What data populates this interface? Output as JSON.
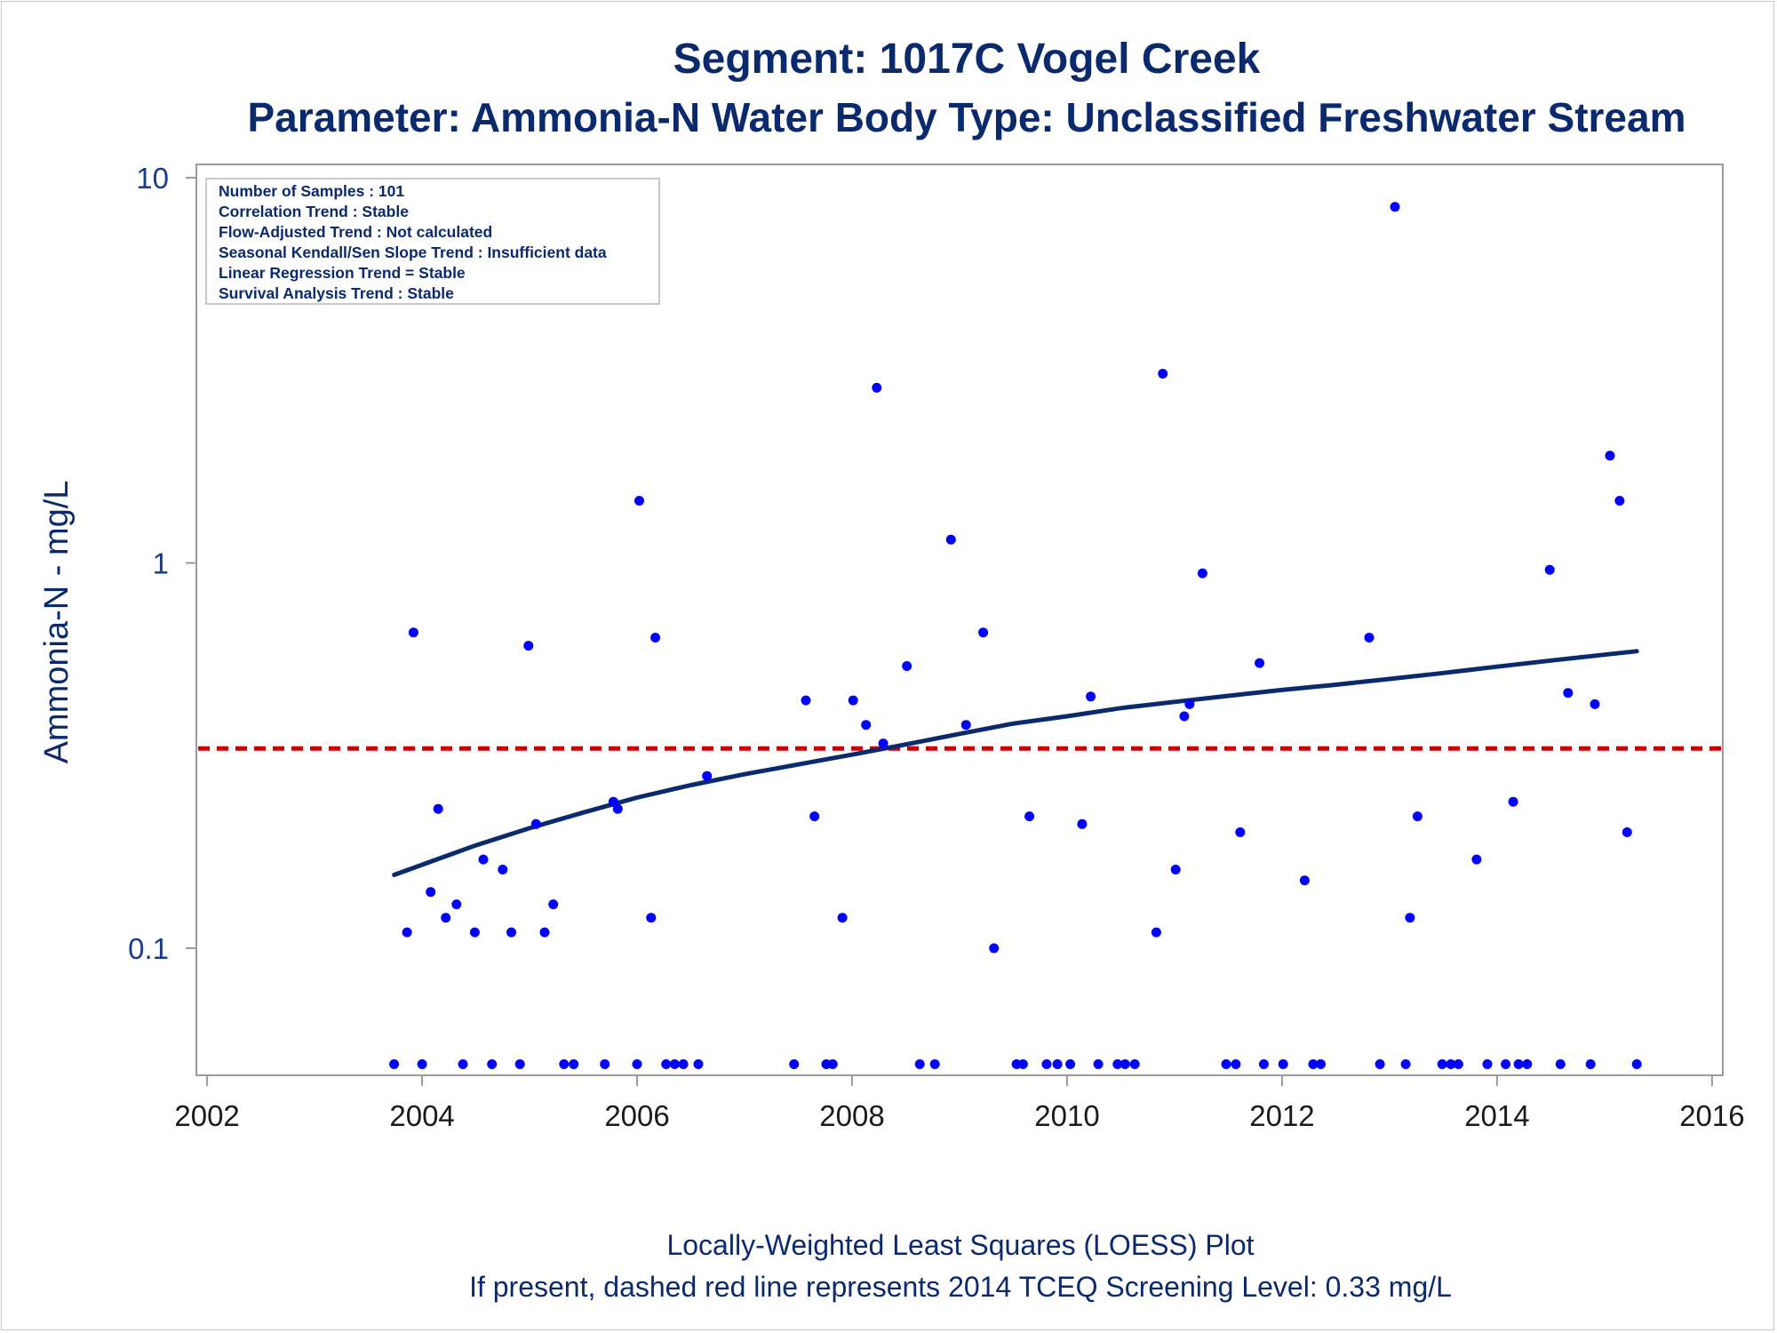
{
  "chart_data": {
    "type": "scatter",
    "title": "Segment: 1017C  Vogel Creek",
    "subtitle": "Parameter: Ammonia-N   Water Body Type: Unclassified Freshwater Stream",
    "xlabel": "",
    "ylabel": "Ammonia-N - mg/L",
    "yscale": "log",
    "xlim": [
      2001.9,
      2016.1
    ],
    "ylim": [
      0.04,
      10
    ],
    "xticks": [
      "2002",
      "2004",
      "2006",
      "2008",
      "2010",
      "2012",
      "2014",
      "2016"
    ],
    "yticks": [
      {
        "label": "10",
        "value": 10
      },
      {
        "label": "1",
        "value": 1
      },
      {
        "label": "0.1",
        "value": 0.1
      }
    ],
    "grid": false,
    "legend": "none",
    "stats_box": [
      "Number of Samples : 101",
      "Correlation Trend : Stable",
      "Flow-Adjusted Trend : Not calculated",
      "Seasonal Kendall/Sen Slope Trend : Insufficient data",
      "Linear Regression Trend = Stable",
      "Survival Analysis Trend : Stable"
    ],
    "screening_level": 0.33,
    "footnotes": [
      "Locally-Weighted Least Squares (LOESS) Plot",
      "If present, dashed red line represents 2014 TCEQ Screening Level: 0.33 mg/L"
    ],
    "colors": {
      "points": "#0000ff",
      "loess": "#0b2a6e",
      "screening": "#cc0000",
      "text": "#0b2a6e"
    },
    "series": [
      {
        "type": "scatter",
        "x": [
          2003.86,
          2003.92,
          2004.08,
          2004.15,
          2004.22,
          2004.32,
          2004.49,
          2004.57,
          2004.75,
          2004.83,
          2004.99,
          2005.06,
          2005.14,
          2005.22,
          2005.78,
          2005.82,
          2006.02,
          2006.13,
          2006.17,
          2006.65,
          2007.57,
          2007.65,
          2007.91,
          2008.01,
          2008.13,
          2008.23,
          2008.29,
          2008.51,
          2008.92,
          2009.06,
          2009.22,
          2009.32,
          2009.65,
          2010.14,
          2010.22,
          2010.83,
          2010.89,
          2011.01,
          2011.09,
          2011.14,
          2011.26,
          2011.61,
          2011.79,
          2012.21,
          2012.81,
          2013.05,
          2013.19,
          2013.26,
          2013.81,
          2014.15,
          2014.49,
          2014.66,
          2014.91,
          2015.05,
          2015.14,
          2015.21
        ],
        "y": [
          0.11,
          0.66,
          0.14,
          0.23,
          0.12,
          0.13,
          0.11,
          0.17,
          0.16,
          0.11,
          0.61,
          0.21,
          0.11,
          0.13,
          0.24,
          0.23,
          1.45,
          0.12,
          0.64,
          0.28,
          0.44,
          0.22,
          0.12,
          0.44,
          0.38,
          2.85,
          0.34,
          0.54,
          1.15,
          0.38,
          0.66,
          0.1,
          0.22,
          0.21,
          0.45,
          0.11,
          3.1,
          0.16,
          0.4,
          0.43,
          0.94,
          0.2,
          0.55,
          0.15,
          0.64,
          8.4,
          0.12,
          0.22,
          0.17,
          0.24,
          0.96,
          0.46,
          0.43,
          1.9,
          1.45,
          0.2
        ]
      },
      {
        "type": "scatter",
        "x": [
          2003.74,
          2004.0,
          2004.38,
          2004.65,
          2004.91,
          2005.32,
          2005.41,
          2005.7,
          2006.0,
          2006.27,
          2006.35,
          2006.43,
          2006.57,
          2007.46,
          2007.76,
          2007.82,
          2008.63,
          2008.77,
          2009.53,
          2009.59,
          2009.81,
          2009.91,
          2010.03,
          2010.29,
          2010.47,
          2010.54,
          2010.63,
          2011.48,
          2011.57,
          2011.83,
          2012.01,
          2012.29,
          2012.36,
          2012.91,
          2013.15,
          2013.49,
          2013.57,
          2013.64,
          2013.91,
          2014.08,
          2014.2,
          2014.28,
          2014.59,
          2014.87,
          2015.3
        ],
        "y": [
          0.05,
          0.05,
          0.05,
          0.05,
          0.05,
          0.05,
          0.05,
          0.05,
          0.05,
          0.05,
          0.05,
          0.05,
          0.05,
          0.05,
          0.05,
          0.05,
          0.05,
          0.05,
          0.05,
          0.05,
          0.05,
          0.05,
          0.05,
          0.05,
          0.05,
          0.05,
          0.05,
          0.05,
          0.05,
          0.05,
          0.05,
          0.05,
          0.05,
          0.05,
          0.05,
          0.05,
          0.05,
          0.05,
          0.05,
          0.05,
          0.05,
          0.05,
          0.05,
          0.05,
          0.05
        ]
      },
      {
        "type": "line",
        "x": [
          2003.74,
          2004.5,
          2005.0,
          2005.5,
          2006.0,
          2006.5,
          2007.0,
          2007.5,
          2008.0,
          2008.5,
          2009.0,
          2009.5,
          2010.0,
          2010.5,
          2011.0,
          2011.5,
          2012.0,
          2012.5,
          2013.0,
          2013.5,
          2014.0,
          2014.5,
          2015.0,
          2015.3
        ],
        "y": [
          0.155,
          0.185,
          0.205,
          0.225,
          0.246,
          0.265,
          0.283,
          0.3,
          0.318,
          0.338,
          0.36,
          0.383,
          0.4,
          0.42,
          0.436,
          0.452,
          0.468,
          0.483,
          0.5,
          0.518,
          0.538,
          0.558,
          0.578,
          0.59
        ]
      }
    ]
  }
}
